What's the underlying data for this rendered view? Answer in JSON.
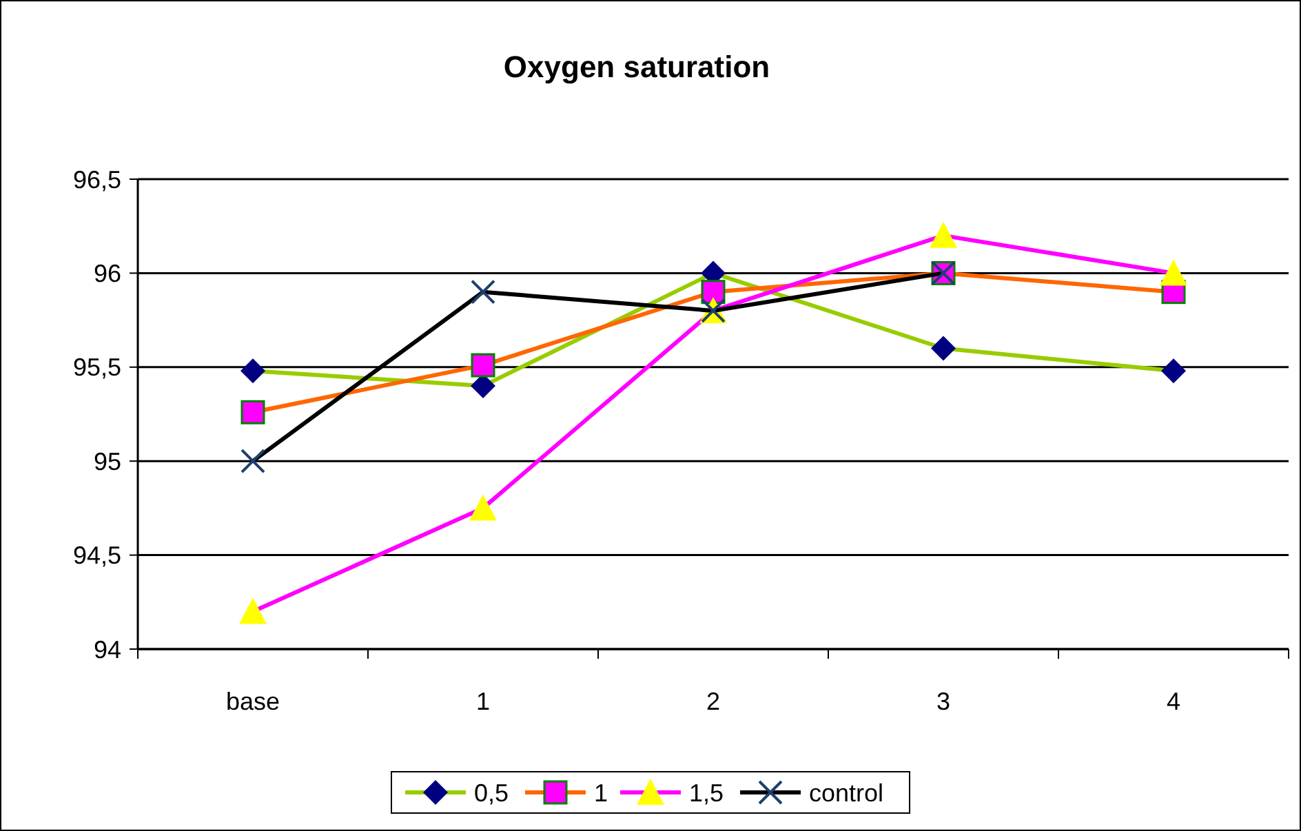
{
  "chart_data": {
    "type": "line",
    "title": "Oxygen saturation",
    "categories": [
      "base",
      "1",
      "2",
      "3",
      "4"
    ],
    "series": [
      {
        "name": "0,5",
        "color": "#99cc00",
        "marker": "diamond",
        "values": [
          95.48,
          95.4,
          96.0,
          95.6,
          95.48
        ]
      },
      {
        "name": "1",
        "color": "#ff6600",
        "marker": "square",
        "values": [
          95.26,
          95.51,
          95.9,
          96.0,
          95.9
        ]
      },
      {
        "name": "1,5",
        "color": "#ff00ff",
        "marker": "triangle",
        "values": [
          94.2,
          94.75,
          95.8,
          96.2,
          96.0
        ]
      },
      {
        "name": "control",
        "color": "#000000",
        "marker": "cross",
        "values": [
          95.0,
          95.9,
          95.8,
          96.0,
          null
        ]
      }
    ],
    "ylim": [
      94,
      96.5
    ],
    "yticks": [
      94,
      {
        "value": 94.5,
        "label": "94,5"
      },
      95,
      {
        "value": 95.5,
        "label": "95,5"
      },
      96,
      {
        "value": 96.5,
        "label": "96,5"
      }
    ],
    "grid": "y",
    "legend": "bottom"
  }
}
